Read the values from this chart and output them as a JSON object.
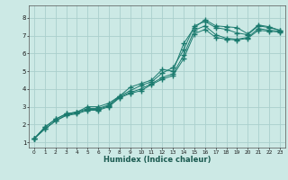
{
  "xlabel": "Humidex (Indice chaleur)",
  "bg_color": "#cce9e5",
  "grid_color": "#aacfcc",
  "line_color": "#1a7a6e",
  "xlim": [
    -0.5,
    23.5
  ],
  "ylim": [
    0.7,
    8.7
  ],
  "xticks": [
    0,
    1,
    2,
    3,
    4,
    5,
    6,
    7,
    8,
    9,
    10,
    11,
    12,
    13,
    14,
    15,
    16,
    17,
    18,
    19,
    20,
    21,
    22,
    23
  ],
  "yticks": [
    1,
    2,
    3,
    4,
    5,
    6,
    7,
    8
  ],
  "line1_x": [
    0,
    1,
    2,
    3,
    4,
    5,
    6,
    7,
    8,
    9,
    10,
    11,
    12,
    13,
    14,
    15,
    16,
    17,
    18,
    19,
    20,
    21,
    22,
    23
  ],
  "line1_y": [
    1.2,
    1.85,
    2.3,
    2.6,
    2.7,
    3.0,
    3.0,
    3.2,
    3.6,
    4.1,
    4.3,
    4.5,
    5.1,
    5.0,
    6.55,
    7.45,
    7.9,
    7.55,
    7.5,
    7.45,
    7.1,
    7.6,
    7.5,
    7.3
  ],
  "line2_x": [
    0,
    1,
    2,
    3,
    4,
    5,
    6,
    7,
    8,
    9,
    10,
    11,
    12,
    13,
    14,
    15,
    16,
    17,
    18,
    19,
    20,
    21,
    22,
    23
  ],
  "line2_y": [
    1.2,
    1.85,
    2.3,
    2.6,
    2.7,
    2.9,
    2.9,
    3.1,
    3.6,
    3.9,
    4.2,
    4.4,
    4.9,
    5.2,
    6.2,
    7.55,
    7.8,
    7.45,
    7.35,
    7.15,
    7.05,
    7.55,
    7.45,
    7.3
  ],
  "line3_x": [
    0,
    1,
    2,
    3,
    4,
    5,
    6,
    7,
    8,
    9,
    10,
    11,
    12,
    13,
    14,
    15,
    16,
    17,
    18,
    19,
    20,
    21,
    22,
    23
  ],
  "line3_y": [
    1.2,
    1.75,
    2.2,
    2.55,
    2.65,
    2.85,
    2.85,
    3.05,
    3.55,
    3.8,
    4.0,
    4.3,
    4.65,
    4.85,
    5.9,
    7.3,
    7.55,
    7.05,
    6.85,
    6.8,
    6.9,
    7.4,
    7.3,
    7.25
  ],
  "line4_x": [
    0,
    1,
    2,
    3,
    4,
    5,
    6,
    7,
    8,
    9,
    10,
    11,
    12,
    13,
    14,
    15,
    16,
    17,
    18,
    19,
    20,
    21,
    22,
    23
  ],
  "line4_y": [
    1.2,
    1.75,
    2.2,
    2.5,
    2.6,
    2.8,
    2.8,
    3.0,
    3.5,
    3.75,
    3.9,
    4.25,
    4.55,
    4.75,
    5.7,
    7.1,
    7.35,
    6.9,
    6.8,
    6.75,
    6.85,
    7.3,
    7.25,
    7.2
  ]
}
